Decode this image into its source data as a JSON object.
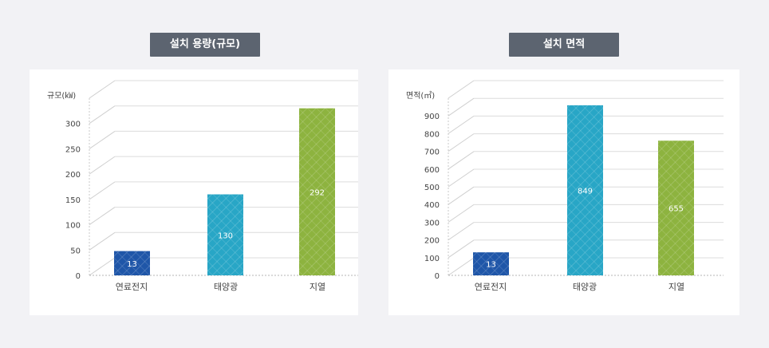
{
  "chart_data": [
    {
      "type": "bar",
      "title": "설치 용량(규모)",
      "ylabel": "규모(㎾)",
      "categories": [
        "연료전지",
        "태양광",
        "지열"
      ],
      "values": [
        13,
        130,
        292
      ],
      "value_labels": [
        "13",
        "130",
        "292"
      ],
      "yticks": [
        "0",
        "50",
        "100",
        "150",
        "200",
        "250",
        "300"
      ],
      "ylim": [
        0,
        350
      ],
      "bar_values_axis": [
        48,
        160,
        330
      ],
      "colors": [
        "#1f56a8",
        "#28a6c6",
        "#8db33f"
      ],
      "grid": true
    },
    {
      "type": "bar",
      "title": "설치 면적",
      "ylabel": "면적(㎡)",
      "categories": [
        "연료전지",
        "태양광",
        "지열"
      ],
      "values": [
        13,
        849,
        655
      ],
      "value_labels": [
        "13",
        "849",
        "655"
      ],
      "yticks": [
        "0",
        "100",
        "200",
        "300",
        "400",
        "500",
        "600",
        "700",
        "800",
        "900"
      ],
      "ylim": [
        0,
        1000
      ],
      "bar_values_axis": [
        130,
        960,
        760
      ],
      "colors": [
        "#1f56a8",
        "#28a6c6",
        "#8db33f"
      ],
      "grid": true
    }
  ]
}
